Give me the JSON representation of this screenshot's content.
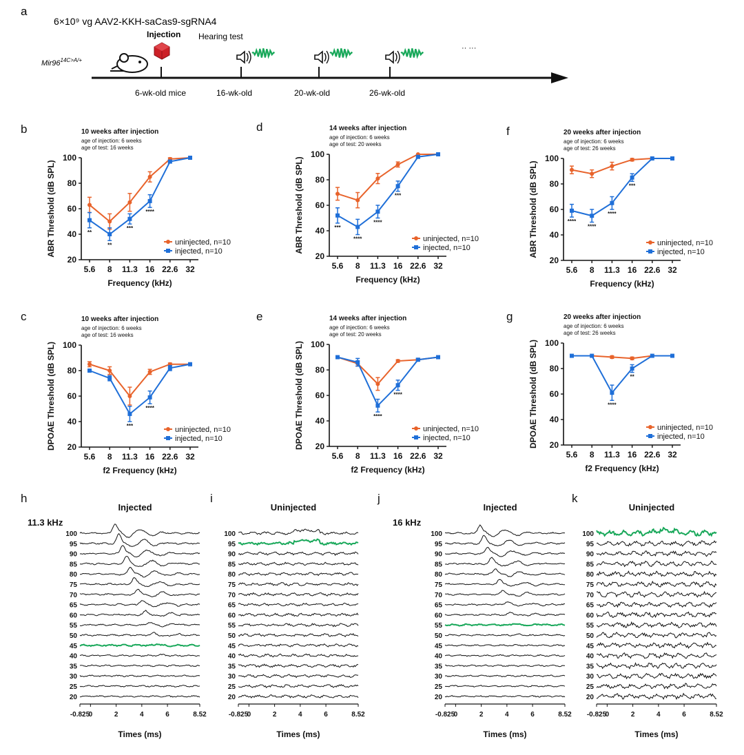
{
  "colors": {
    "uninjected": "#e8632b",
    "injected": "#1f6fd8",
    "highlight": "#19a85a",
    "injection_icon": "#cc2027",
    "axis": "#111111",
    "trace": "#111111"
  },
  "panel_a": {
    "label": "a",
    "dose_text": "6×10⁹ vg AAV2-KKH-saCas9-sgRNA4",
    "strain_base": "Mir96",
    "strain_sup": "14C>A/+",
    "injection_label": "Injection",
    "hearing_label": "Hearing test",
    "timepoints": [
      "6-wk-old mice",
      "16-wk-old",
      "20-wk-old",
      "26-wk-old"
    ],
    "ellipsis": "·· ···",
    "icons": {
      "mouse": "mouse-icon",
      "injection": "injection-icon",
      "speaker": "speaker-icon",
      "sound": "sound-wave-icon"
    }
  },
  "chart_data": [
    {
      "id": "b",
      "type": "line",
      "group": "ABR",
      "title": "10 weeks after injection",
      "subtitle": [
        "age of injection: 6 weeks",
        "age of test: 16 weeks"
      ],
      "xlabel": "Frequency (kHz)",
      "ylabel": "ABR Threshold (dB SPL)",
      "categories": [
        "5.6",
        "8",
        "11.3",
        "16",
        "22.6",
        "32"
      ],
      "ylim": [
        20,
        100
      ],
      "yticks": [
        20,
        40,
        60,
        80,
        100
      ],
      "series": [
        {
          "name": "uninjected, n=10",
          "color": "#e8632b",
          "values": [
            63,
            50,
            65,
            85,
            99,
            100
          ],
          "err": [
            6,
            6,
            7,
            4,
            1,
            0
          ]
        },
        {
          "name": "injected, n=10",
          "color": "#1f6fd8",
          "values": [
            51,
            40,
            52,
            66,
            97,
            100
          ],
          "err": [
            6,
            5,
            4,
            5,
            1,
            0
          ]
        }
      ],
      "significance": [
        "**",
        "**",
        "***",
        "****",
        "",
        ""
      ],
      "legend": "bottom-right"
    },
    {
      "id": "d",
      "type": "line",
      "group": "ABR",
      "title": "14 weeks after injection",
      "subtitle": [
        "age of injection: 6 weeks",
        "age of test: 20 weeks"
      ],
      "xlabel": "Frequency (kHz)",
      "ylabel": "ABR Threshold (dB SPL)",
      "categories": [
        "5.6",
        "8",
        "11.3",
        "16",
        "22.6",
        "32"
      ],
      "ylim": [
        20,
        100
      ],
      "yticks": [
        20,
        40,
        60,
        80,
        100
      ],
      "series": [
        {
          "name": "uninjected, n=10",
          "color": "#e8632b",
          "values": [
            69,
            64,
            81,
            92,
            100,
            100
          ],
          "err": [
            5,
            6,
            4,
            2,
            0,
            0
          ]
        },
        {
          "name": "injected, n=10",
          "color": "#1f6fd8",
          "values": [
            52,
            43,
            55,
            75,
            98,
            100
          ],
          "err": [
            6,
            6,
            5,
            4,
            1,
            0
          ]
        }
      ],
      "significance": [
        "***",
        "****",
        "****",
        "***",
        "",
        ""
      ],
      "legend": "bottom-right"
    },
    {
      "id": "f",
      "type": "line",
      "group": "ABR",
      "title": "20 weeks after injection",
      "subtitle": [
        "age of injection: 6 weeks",
        "age of test: 26 weeks"
      ],
      "xlabel": "Frequency (kHz)",
      "ylabel": "ABR Threshold (dB SPL)",
      "categories": [
        "5.6",
        "8",
        "11.3",
        "16",
        "22.6",
        "32"
      ],
      "ylim": [
        20,
        100
      ],
      "yticks": [
        20,
        40,
        60,
        80,
        100
      ],
      "series": [
        {
          "name": "uninjected, n=10",
          "color": "#e8632b",
          "values": [
            91,
            88,
            94,
            99,
            100,
            100
          ],
          "err": [
            3,
            3,
            3,
            1,
            0,
            0
          ]
        },
        {
          "name": "injected, n=10",
          "color": "#1f6fd8",
          "values": [
            59,
            55,
            65,
            85,
            100,
            100
          ],
          "err": [
            5,
            5,
            5,
            3,
            0,
            0
          ]
        }
      ],
      "significance": [
        "****",
        "****",
        "****",
        "***",
        "",
        ""
      ],
      "legend": "bottom-right"
    },
    {
      "id": "c",
      "type": "line",
      "group": "DPOAE",
      "title": "10 weeks after injection",
      "subtitle": [
        "age of injection: 6 weeks",
        "age of test: 16 weeks"
      ],
      "xlabel": "f2 Frequency (kHz)",
      "ylabel": "DPOAE Threshold (dB SPL)",
      "categories": [
        "5.6",
        "8",
        "11.3",
        "16",
        "22.6",
        "32"
      ],
      "ylim": [
        20,
        100
      ],
      "yticks": [
        20,
        40,
        60,
        80,
        100
      ],
      "series": [
        {
          "name": "uninjected, n=10",
          "color": "#e8632b",
          "values": [
            85,
            80,
            60,
            79,
            85,
            85
          ],
          "err": [
            2,
            3,
            7,
            2,
            1,
            1
          ]
        },
        {
          "name": "injected, n=10",
          "color": "#1f6fd8",
          "values": [
            80,
            74,
            46,
            59,
            82,
            85
          ],
          "err": [
            1,
            2,
            6,
            5,
            2,
            1
          ]
        }
      ],
      "significance": [
        "",
        "",
        "***",
        "****",
        "",
        ""
      ],
      "legend": "bottom-right"
    },
    {
      "id": "e",
      "type": "line",
      "group": "DPOAE",
      "title": "14 weeks after injection",
      "subtitle": [
        "age of injection: 6 weeks",
        "age of test: 20 weeks"
      ],
      "xlabel": "f2 Frequency (kHz)",
      "ylabel": "DPOAE Threshold (dB SPL)",
      "categories": [
        "5.6",
        "8",
        "11.3",
        "16",
        "22.6",
        "32"
      ],
      "ylim": [
        20,
        100
      ],
      "yticks": [
        20,
        40,
        60,
        80,
        100
      ],
      "series": [
        {
          "name": "uninjected, n=10",
          "color": "#e8632b",
          "values": [
            90,
            85,
            69,
            87,
            88,
            90
          ],
          "err": [
            1,
            2,
            5,
            1,
            1,
            0
          ]
        },
        {
          "name": "injected, n=10",
          "color": "#1f6fd8",
          "values": [
            90,
            86,
            52,
            68,
            88,
            90
          ],
          "err": [
            1,
            3,
            5,
            4,
            1,
            0
          ]
        }
      ],
      "significance": [
        "",
        "",
        "****",
        "****",
        "",
        ""
      ],
      "legend": "bottom-right"
    },
    {
      "id": "g",
      "type": "line",
      "group": "DPOAE",
      "title": "20 weeks after injection",
      "subtitle": [
        "age of injection: 6 weeks",
        "age of test: 26 weeks"
      ],
      "xlabel": "f2 Frequency (kHz)",
      "ylabel": "DPOAE Threshold (dB SPL)",
      "categories": [
        "5.6",
        "8",
        "11.3",
        "16",
        "22.6",
        "32"
      ],
      "ylim": [
        20,
        100
      ],
      "yticks": [
        20,
        40,
        60,
        80,
        100
      ],
      "series": [
        {
          "name": "uninjected, n=10",
          "color": "#e8632b",
          "values": [
            90,
            90,
            89,
            88,
            90,
            90
          ],
          "err": [
            0,
            0,
            1,
            1,
            0,
            0
          ]
        },
        {
          "name": "injected, n=10",
          "color": "#1f6fd8",
          "values": [
            90,
            90,
            61,
            80,
            90,
            90
          ],
          "err": [
            0,
            0,
            6,
            3,
            0,
            0
          ]
        }
      ],
      "significance": [
        "",
        "",
        "****",
        "**",
        "",
        ""
      ],
      "legend": "bottom-right"
    }
  ],
  "waveforms": [
    {
      "id": "h",
      "title": "Injected",
      "freq_label": "11.3 kHz",
      "levels": [
        100,
        95,
        90,
        85,
        80,
        75,
        70,
        65,
        60,
        55,
        50,
        45,
        40,
        35,
        30,
        25,
        20
      ],
      "threshold": 45,
      "xlabel": "Times (ms)",
      "xticks": [
        "-0.825",
        "0",
        "2",
        "4",
        "6",
        "8.52"
      ],
      "response": true
    },
    {
      "id": "i",
      "title": "Uninjected",
      "freq_label": "",
      "levels": [
        100,
        95,
        90,
        85,
        80,
        75,
        70,
        65,
        60,
        55,
        50,
        45,
        40,
        35,
        30,
        25,
        20
      ],
      "threshold": 95,
      "xlabel": "Times (ms)",
      "xticks": [
        "-0.825",
        "0",
        "2",
        "4",
        "6",
        "8.52"
      ],
      "response": false
    },
    {
      "id": "j",
      "title": "Injected",
      "freq_label": "16 kHz",
      "levels": [
        100,
        95,
        90,
        85,
        80,
        75,
        70,
        65,
        60,
        55,
        50,
        45,
        40,
        35,
        30,
        25,
        20
      ],
      "threshold": 55,
      "xlabel": "Times (ms)",
      "xticks": [
        "-0.825",
        "0",
        "2",
        "4",
        "6",
        "8.52"
      ],
      "response": true
    },
    {
      "id": "k",
      "title": "Uninjected",
      "freq_label": "",
      "levels": [
        100,
        95,
        90,
        85,
        80,
        75,
        70,
        65,
        60,
        55,
        50,
        45,
        40,
        35,
        30,
        25,
        20
      ],
      "threshold": 100,
      "xlabel": "Times (ms)",
      "xticks": [
        "-0.825",
        "0",
        "2",
        "4",
        "6",
        "8.52"
      ],
      "response": false
    }
  ]
}
